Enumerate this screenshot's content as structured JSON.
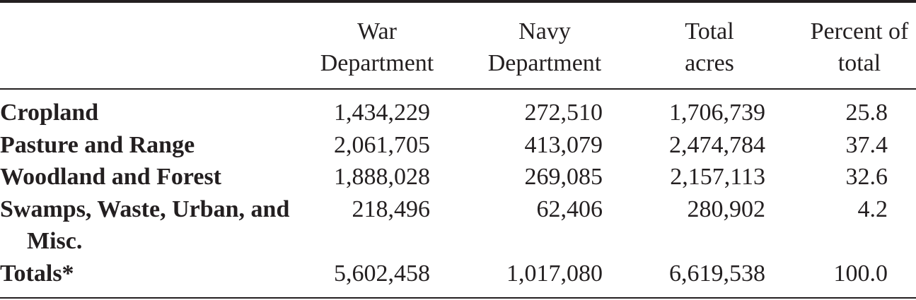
{
  "table": {
    "columns": [
      "War Department",
      "Navy Department",
      "Total acres",
      "Percent of total"
    ],
    "rows": [
      [
        "Cropland",
        "1,434,229",
        "272,510",
        "1,706,739",
        "25.8"
      ],
      [
        "Pasture and Range",
        "2,061,705",
        "413,079",
        "2,474,784",
        "37.4"
      ],
      [
        "Woodland and Forest",
        "1,888,028",
        "269,085",
        "2,157,113",
        "32.6"
      ],
      [
        "Swamps, Waste, Urban, and Misc.",
        "218,496",
        "62,406",
        "280,902",
        "4.2"
      ],
      [
        "Totals*",
        "5,602,458",
        "1,017,080",
        "6,619,538",
        "100.0"
      ]
    ]
  }
}
